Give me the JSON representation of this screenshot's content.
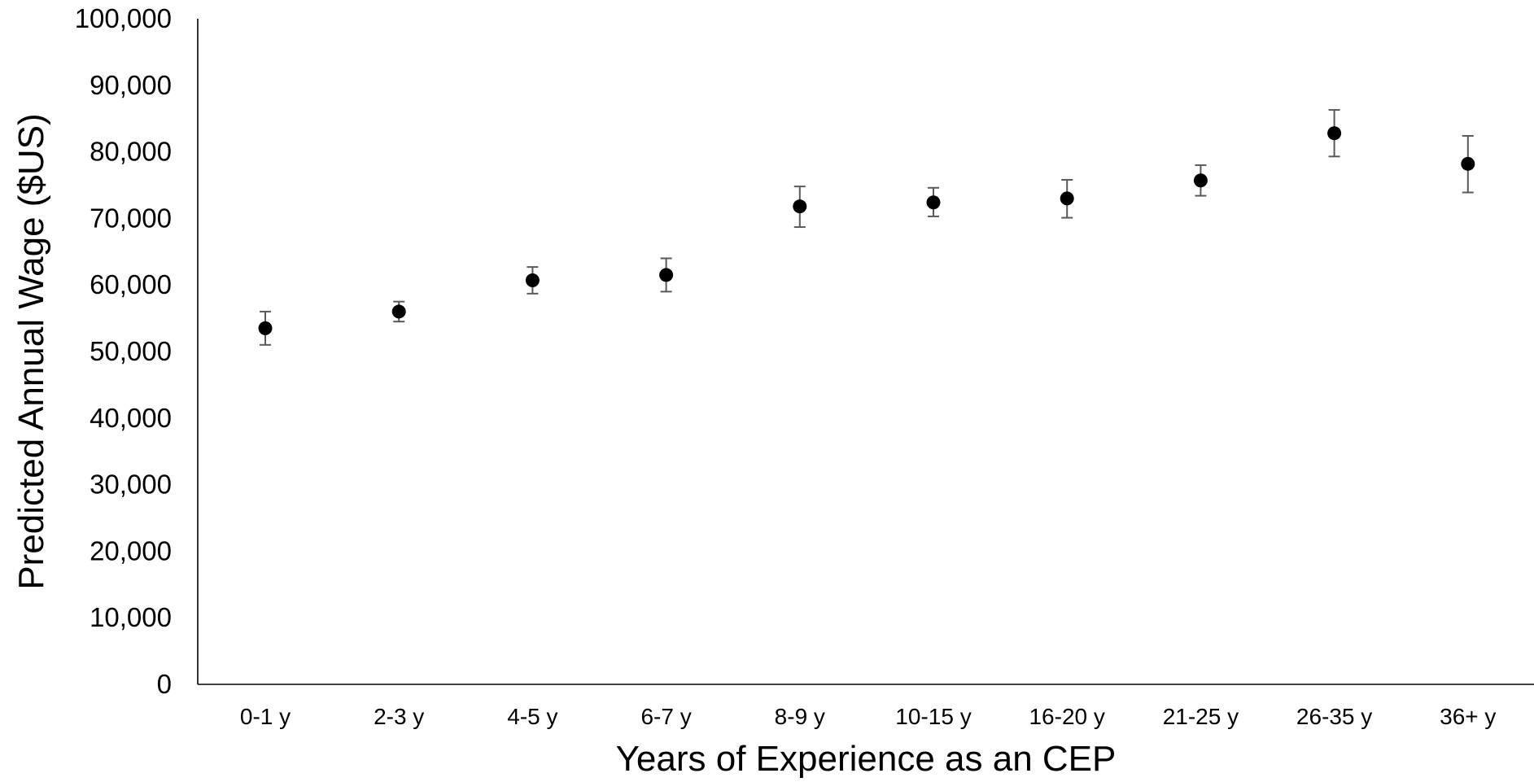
{
  "chart_data": {
    "type": "scatter",
    "title": "",
    "xlabel": "Years of Experience as an CEP",
    "ylabel": "Predicted Annual Wage ($US)",
    "ylim": [
      0,
      100000
    ],
    "y_ticks": [
      0,
      10000,
      20000,
      30000,
      40000,
      50000,
      60000,
      70000,
      80000,
      90000,
      100000
    ],
    "y_tick_labels": [
      "0",
      "10,000",
      "20,000",
      "30,000",
      "40,000",
      "50,000",
      "60,000",
      "70,000",
      "80,000",
      "90,000",
      "100,000"
    ],
    "grid": false,
    "legend": "none",
    "categories": [
      "0-1 y",
      "2-3 y",
      "4-5 y",
      "6-7 y",
      "8-9 y",
      "10-15 y",
      "16-20 y",
      "21-25 y",
      "26-35 y",
      "36+ y"
    ],
    "series": [
      {
        "values": [
          53500,
          56000,
          60700,
          61500,
          71800,
          72400,
          73000,
          75700,
          82800,
          78200
        ],
        "error_low": [
          51000,
          54500,
          58700,
          59000,
          68700,
          70300,
          70100,
          73400,
          79300,
          73900
        ],
        "error_high": [
          56000,
          57500,
          62700,
          64000,
          74800,
          74600,
          75800,
          78000,
          86300,
          82400
        ]
      }
    ],
    "colors": {
      "marker": "#000000",
      "error_bar": "#595959",
      "axis": "#000000"
    }
  }
}
